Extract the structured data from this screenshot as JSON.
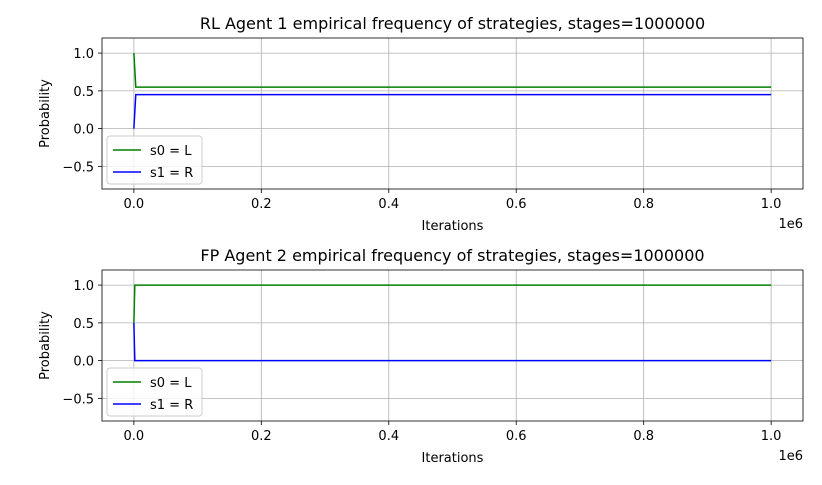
{
  "chart_data": [
    {
      "type": "line",
      "title": "RL Agent 1 empirical frequency of strategies, stages=1000000",
      "xlabel": "Iterations",
      "ylabel": "Probability",
      "x_offset_text": "1e6",
      "xlim": [
        -50000,
        1050000
      ],
      "ylim": [
        -0.8,
        1.2
      ],
      "xticks": [
        0,
        200000,
        400000,
        600000,
        800000,
        1000000
      ],
      "xtick_labels": [
        "0.0",
        "0.2",
        "0.4",
        "0.6",
        "0.8",
        "1.0"
      ],
      "yticks": [
        1.0,
        0.5,
        0.0,
        -0.5
      ],
      "ytick_labels": [
        "1.0",
        "0.5",
        "0.0",
        "−0.5"
      ],
      "grid": true,
      "legend_position": "lower-left",
      "series": [
        {
          "name": "s0 = L",
          "color": "#008000",
          "x": [
            0,
            1,
            3000,
            1000000
          ],
          "y": [
            1.0,
            1.0,
            0.55,
            0.55
          ]
        },
        {
          "name": "s1 = R",
          "color": "#0000ff",
          "x": [
            0,
            1,
            3000,
            1000000
          ],
          "y": [
            0.0,
            0.0,
            0.45,
            0.45
          ]
        }
      ]
    },
    {
      "type": "line",
      "title": "FP Agent 2 empirical frequency of strategies, stages=1000000",
      "xlabel": "Iterations",
      "ylabel": "Probability",
      "x_offset_text": "1e6",
      "xlim": [
        -50000,
        1050000
      ],
      "ylim": [
        -0.8,
        1.2
      ],
      "xticks": [
        0,
        200000,
        400000,
        600000,
        800000,
        1000000
      ],
      "xtick_labels": [
        "0.0",
        "0.2",
        "0.4",
        "0.6",
        "0.8",
        "1.0"
      ],
      "yticks": [
        1.0,
        0.5,
        0.0,
        -0.5
      ],
      "ytick_labels": [
        "1.0",
        "0.5",
        "0.0",
        "−0.5"
      ],
      "grid": true,
      "legend_position": "lower-left",
      "series": [
        {
          "name": "s0 = L",
          "color": "#008000",
          "x": [
            0,
            1,
            1500,
            1000000
          ],
          "y": [
            0.5,
            0.5,
            1.0,
            1.0
          ]
        },
        {
          "name": "s1 = R",
          "color": "#0000ff",
          "x": [
            0,
            1,
            1500,
            1000000
          ],
          "y": [
            0.5,
            0.5,
            0.0,
            0.0
          ]
        }
      ]
    }
  ]
}
